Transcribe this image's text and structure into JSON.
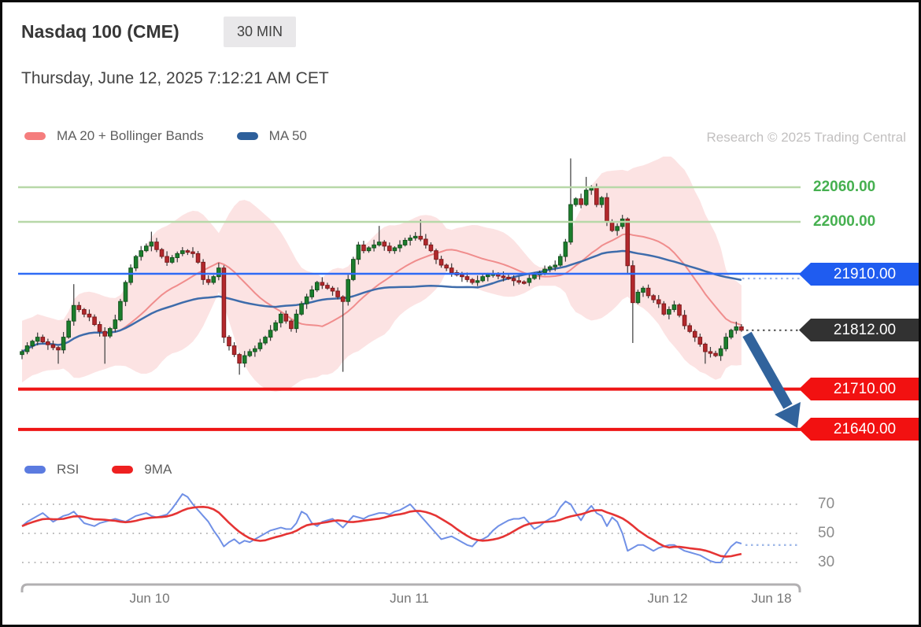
{
  "header": {
    "title": "Nasdaq 100 (CME)",
    "timeframe": "30 MIN",
    "datetime": "Thursday, June 12, 2025 7:12:21 AM CET"
  },
  "credit": "Research © 2025 Trading Central",
  "legend_price": {
    "ma20": "MA 20 + Bollinger Bands",
    "ma50": "MA 50"
  },
  "legend_rsi": {
    "rsi": "RSI",
    "ma9": "9MA"
  },
  "levels": [
    {
      "value": 22060,
      "label": "22060.00",
      "style": "green"
    },
    {
      "value": 22000,
      "label": "22000.00",
      "style": "green"
    },
    {
      "value": 21910,
      "label": "21910.00",
      "style": "blue"
    },
    {
      "value": 21812,
      "label": "21812.00",
      "style": "black"
    },
    {
      "value": 21710,
      "label": "21710.00",
      "style": "red"
    },
    {
      "value": 21640,
      "label": "21640.00",
      "style": "red"
    }
  ],
  "colors": {
    "green_line": "#b7d8a8",
    "green_text": "#46b050",
    "blue_line": "#2e6bf5",
    "blue_pill": "#1f5cf0",
    "black_pill": "#323232",
    "red_line": "#ee1515",
    "red_pill": "#f21111",
    "candle_up": "#1b7e2c",
    "candle_up_border": "#14521e",
    "candle_down": "#b3282c",
    "candle_down_border": "#7e1a1c",
    "wick": "#3a3a3a",
    "boll_fill": "rgba(246,182,182,0.38)",
    "ma20": "#f08d8d",
    "ma50": "#3e6cab",
    "rsi_line": "#7090e6",
    "rsi_ma": "#e53434",
    "dotted_blue": "#9fb8e8",
    "dotted_black": "#5a5a5a",
    "grid_dot": "#bcbcbc",
    "axis": "#b2b0b2",
    "arrow": "#31639c",
    "legend_ma20_swatch": "#f57d7d",
    "legend_ma50_swatch": "#2d5f9b",
    "legend_rsi_swatch": "#5b7be0",
    "legend_9ma_swatch": "#ee2020"
  },
  "chart_data": {
    "type": "candlestick+rsi",
    "instrument": "Nasdaq 100 (CME)",
    "interval": "30 MIN",
    "price_axis": {
      "pivot": 21910,
      "resistances": [
        22000,
        22060
      ],
      "supports": [
        21710,
        21640
      ],
      "last_price": 21812
    },
    "x_axis_dates": [
      "Jun 10",
      "Jun 11",
      "Jun 12",
      "Jun 18"
    ],
    "rsi_ticks": [
      70,
      50,
      30
    ],
    "rsi_last_dotted_value": 42,
    "forecast_arrow": {
      "direction": "down",
      "from_price": 21805,
      "to_price": 21655
    },
    "candles": {
      "count": 140,
      "first_open": 21770,
      "closes": [
        21775,
        21785,
        21793,
        21800,
        21792,
        21787,
        21782,
        21778,
        21800,
        21828,
        21855,
        21848,
        21840,
        21835,
        21822,
        21810,
        21802,
        21815,
        21830,
        21862,
        21895,
        21920,
        21940,
        21950,
        21958,
        21965,
        21952,
        21940,
        21930,
        21938,
        21945,
        21950,
        21948,
        21945,
        21930,
        21900,
        21895,
        21905,
        21920,
        21800,
        21785,
        21770,
        21755,
        21768,
        21775,
        21780,
        21790,
        21800,
        21812,
        21825,
        21840,
        21828,
        21815,
        21840,
        21858,
        21870,
        21882,
        21895,
        21890,
        21885,
        21880,
        21870,
        21862,
        21900,
        21935,
        21960,
        21950,
        21955,
        21960,
        21965,
        21958,
        21950,
        21955,
        21960,
        21968,
        21972,
        21975,
        21970,
        21960,
        21950,
        21935,
        21925,
        21920,
        21912,
        21908,
        21905,
        21900,
        21895,
        21898,
        21905,
        21908,
        21910,
        21906,
        21904,
        21902,
        21898,
        21896,
        21895,
        21902,
        21908,
        21912,
        21918,
        21922,
        21925,
        21940,
        21965,
        22030,
        22040,
        22030,
        22055,
        22060,
        22030,
        22042,
        22000,
        21985,
        21992,
        22005,
        21924,
        21860,
        21878,
        21885,
        21872,
        21865,
        21858,
        21840,
        21848,
        21856,
        21838,
        21820,
        21810,
        21800,
        21788,
        21775,
        21772,
        21768,
        21780,
        21800,
        21812,
        21818,
        21812
      ],
      "wick_overrides": {
        "7": {
          "low": 21754
        },
        "10": {
          "high": 21892
        },
        "16": {
          "low": 21754
        },
        "25": {
          "high": 21983
        },
        "39": {
          "low": 21790
        },
        "42": {
          "low": 21735
        },
        "62": {
          "low": 21740
        },
        "69": {
          "high": 21993
        },
        "77": {
          "high": 22004
        },
        "106": {
          "high": 22110
        },
        "109": {
          "high": 22078
        },
        "117": {
          "low": 21910
        },
        "118": {
          "low": 21790
        },
        "132": {
          "low": 21754
        }
      }
    },
    "indicators": {
      "ma20_period": 20,
      "ma50_period": 50,
      "bollinger_k": 2,
      "rsi_ma_period": 9,
      "rsi_values": [
        55,
        58,
        60,
        62,
        64,
        61,
        58,
        60,
        62,
        63,
        65,
        61,
        57,
        56,
        55,
        57,
        58,
        59,
        60,
        59,
        58,
        60,
        62,
        63,
        64,
        62,
        61,
        62,
        63,
        67,
        72,
        77,
        75,
        70,
        66,
        62,
        58,
        52,
        47,
        41,
        44,
        46,
        43,
        45,
        44,
        46,
        48,
        50,
        52,
        53,
        54,
        53,
        53,
        57,
        65,
        63,
        57,
        55,
        58,
        59,
        60,
        57,
        54,
        58,
        62,
        61,
        60,
        62,
        63,
        64,
        64,
        63,
        65,
        66,
        68,
        70,
        66,
        62,
        58,
        54,
        50,
        46,
        47,
        48,
        46,
        44,
        42,
        41,
        45,
        46,
        48,
        52,
        55,
        57,
        59,
        60,
        60,
        61,
        57,
        53,
        55,
        58,
        60,
        62,
        68,
        72,
        70,
        64,
        59,
        65,
        69,
        64,
        62,
        55,
        61,
        58,
        50,
        38,
        40,
        42,
        42,
        40,
        38,
        40,
        41,
        42,
        42,
        40,
        38,
        37,
        36,
        35,
        33,
        31,
        30,
        30,
        36,
        41,
        44,
        43
      ]
    }
  }
}
